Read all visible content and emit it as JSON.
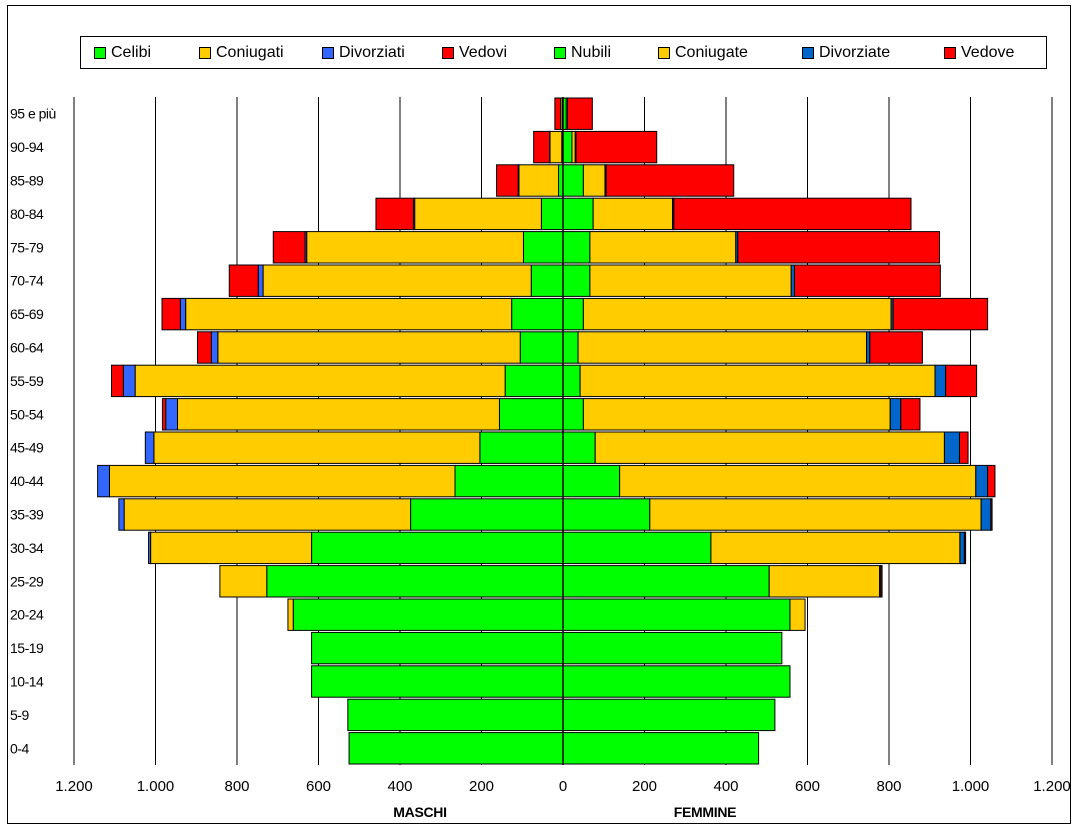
{
  "chart_data": {
    "type": "bar",
    "orientation": "horizontal",
    "stacked": true,
    "categories": [
      "0-4",
      "5-9",
      "10-14",
      "15-19",
      "20-24",
      "25-29",
      "30-34",
      "35-39",
      "40-44",
      "45-49",
      "50-54",
      "55-59",
      "60-64",
      "65-69",
      "70-74",
      "75-79",
      "80-84",
      "85-89",
      "90-94",
      "95 e più"
    ],
    "left_label": "MASCHI",
    "right_label": "FEMMINE",
    "x_ticks": [
      1200,
      1000,
      800,
      600,
      400,
      200,
      0,
      200,
      400,
      600,
      800,
      1000,
      1200
    ],
    "x_tick_labels": [
      "1.200",
      "1.000",
      "800",
      "600",
      "400",
      "200",
      "0",
      "200",
      "400",
      "600",
      "800",
      "1.000",
      "1.200"
    ],
    "xlim": [
      -1200,
      1200
    ],
    "grid": "vertical",
    "legend_position": "top",
    "series": [
      {
        "name": "Celibi",
        "side": "left",
        "color": "#00ff00",
        "values": [
          525,
          528,
          617,
          617,
          662,
          727,
          617,
          374,
          265,
          204,
          156,
          142,
          105,
          126,
          78,
          97,
          53,
          11,
          3,
          2
        ]
      },
      {
        "name": "Coniugati",
        "side": "left",
        "color": "#ffcc00",
        "values": [
          0,
          0,
          0,
          0,
          13,
          115,
          395,
          703,
          848,
          800,
          790,
          908,
          742,
          800,
          658,
          532,
          311,
          97,
          29,
          4
        ]
      },
      {
        "name": "Divorziati",
        "side": "left",
        "color": "#3366ff",
        "values": [
          0,
          0,
          0,
          0,
          0,
          0,
          5,
          13,
          29,
          21,
          29,
          29,
          16,
          13,
          12,
          4,
          3,
          2,
          1,
          0
        ]
      },
      {
        "name": "Vedovi",
        "side": "left",
        "color": "#ff0000",
        "values": [
          0,
          0,
          0,
          0,
          0,
          0,
          0,
          0,
          0,
          0,
          8,
          29,
          34,
          45,
          71,
          78,
          92,
          53,
          39,
          14
        ]
      },
      {
        "name": "Nubili",
        "side": "right",
        "color": "#00ff00",
        "values": [
          480,
          520,
          557,
          537,
          557,
          506,
          363,
          213,
          139,
          79,
          50,
          42,
          37,
          50,
          66,
          66,
          74,
          50,
          22,
          8
        ]
      },
      {
        "name": "Coniugate",
        "side": "right",
        "color": "#ffcc00",
        "values": [
          0,
          0,
          0,
          0,
          37,
          271,
          611,
          813,
          874,
          857,
          753,
          871,
          708,
          755,
          494,
          358,
          195,
          53,
          8,
          3
        ]
      },
      {
        "name": "Divorziate",
        "side": "right",
        "color": "#0066cc",
        "values": [
          0,
          0,
          0,
          0,
          0,
          3,
          11,
          24,
          29,
          37,
          26,
          26,
          8,
          5,
          8,
          5,
          3,
          3,
          2,
          0
        ]
      },
      {
        "name": "Vedove",
        "side": "right",
        "color": "#ff0000",
        "values": [
          0,
          0,
          0,
          0,
          0,
          3,
          3,
          3,
          18,
          21,
          47,
          76,
          129,
          232,
          358,
          495,
          582,
          313,
          198,
          61
        ]
      }
    ]
  }
}
